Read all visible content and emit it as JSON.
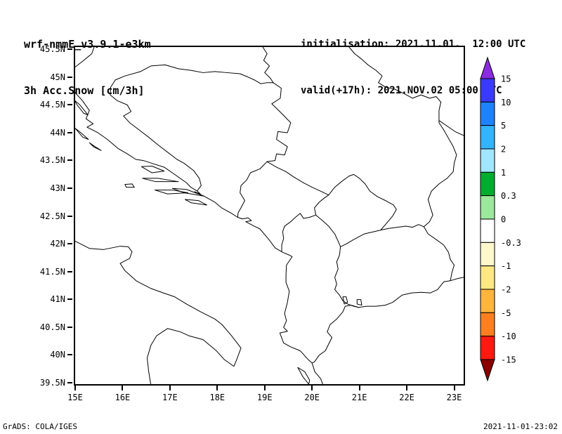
{
  "header": {
    "model_line": "wrf-nmmE_v3.9.1-e3km",
    "field_line": "3h Acc.Snow [cm/3h]",
    "init_line": "initialisation: 2021.11.01.  12:00 UTC",
    "valid_line": "valid(+17h): 2021.NOV.02 05:00 UTC"
  },
  "axes": {
    "lat_ticks": [
      "45.5N",
      "45N",
      "44.5N",
      "44N",
      "43.5N",
      "43N",
      "42.5N",
      "42N",
      "41.5N",
      "41N",
      "40.5N",
      "40N",
      "39.5N"
    ],
    "lon_ticks": [
      "15E",
      "16E",
      "17E",
      "18E",
      "19E",
      "20E",
      "21E",
      "22E",
      "23E"
    ]
  },
  "colorbar": {
    "labels": [
      "15",
      "10",
      "5",
      "2",
      "1",
      "0.3",
      "0",
      "-0.3",
      "-1",
      "-2",
      "-5",
      "-10",
      "-15"
    ],
    "segment_colors": [
      "#3a3aff",
      "#1e82ff",
      "#32b4ff",
      "#a0e6ff",
      "#00ad2d",
      "#9ce89c",
      "#ffffff",
      "#fff8cc",
      "#ffe882",
      "#ffb43c",
      "#ff7f1e",
      "#ff1910"
    ],
    "arrow_top_color": "#8a2be2",
    "arrow_bottom_color": "#8b0000",
    "units": "cm/3h"
  },
  "footer": {
    "left": "GrADS: COLA/IGES",
    "right": "2021-11-01-23:02"
  },
  "chart_data": {
    "type": "heatmap",
    "title": "3h Acc.Snow [cm/3h]",
    "subtitle_model": "wrf-nmmE_v3.9.1-e3km",
    "initialisation": "2021.11.01. 12:00 UTC",
    "valid": "valid(+17h): 2021.NOV.02 05:00 UTC",
    "x_axis": {
      "ticks": [
        "15E",
        "16E",
        "17E",
        "18E",
        "19E",
        "20E",
        "21E",
        "22E",
        "23E"
      ],
      "range_deg_east": [
        15,
        23.2
      ]
    },
    "y_axis": {
      "ticks": [
        "45.5N",
        "45N",
        "44.5N",
        "44N",
        "43.5N",
        "43N",
        "42.5N",
        "42N",
        "41.5N",
        "41N",
        "40.5N",
        "40N",
        "39.5N"
      ],
      "range_deg_north": [
        39.5,
        45.55
      ]
    },
    "contour_levels_cm_per_3h": [
      -15,
      -10,
      -5,
      -2,
      -1,
      -0.3,
      0,
      0.3,
      1,
      2,
      5,
      10,
      15
    ],
    "palette_top_to_bottom": [
      "#8a2be2",
      "#3a3aff",
      "#1e82ff",
      "#32b4ff",
      "#a0e6ff",
      "#00ad2d",
      "#9ce89c",
      "#ffffff",
      "#fff8cc",
      "#ffe882",
      "#ffb43c",
      "#ff7f1e",
      "#ff1910",
      "#8b0000"
    ],
    "legend_position": "right colorbar with out-of-range arrows",
    "field": "no shaded contours anywhere in the domain; plotted 3h snow accumulation is between -0.3 and 0.3 (rendered white) over the whole Adriatic/Balkans map",
    "grid": false
  }
}
